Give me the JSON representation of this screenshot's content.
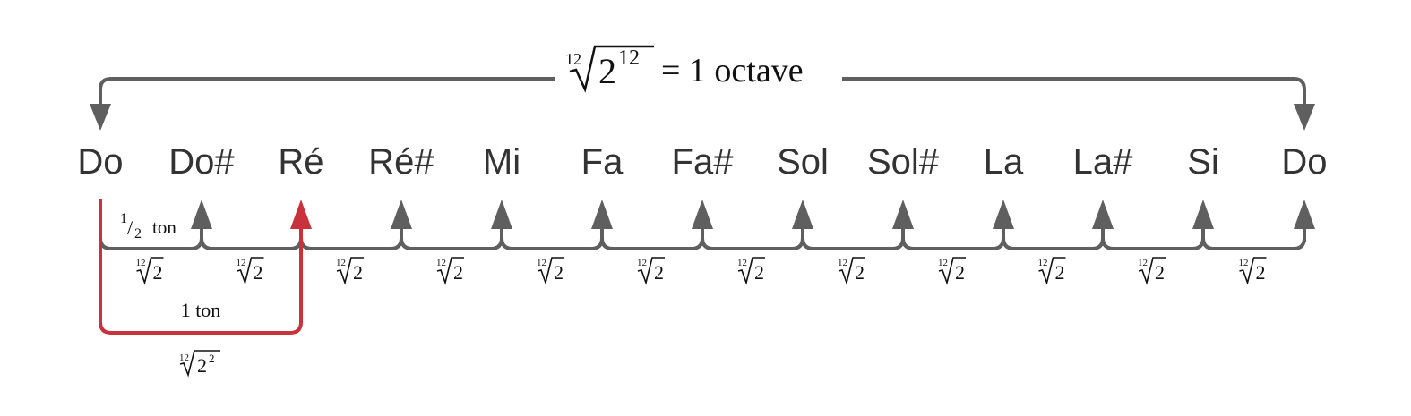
{
  "title": {
    "root_index": "12",
    "radicand_base": "2",
    "radicand_exponent": "12",
    "equals_text": "= 1 octave"
  },
  "notes": [
    "Do",
    "Do#",
    "Ré",
    "Ré#",
    "Mi",
    "Fa",
    "Fa#",
    "Sol",
    "Sol#",
    "La",
    "La#",
    "Si",
    "Do"
  ],
  "semitone": {
    "label_numerator": "1",
    "label_slash": "/",
    "label_denominator": "2",
    "label_unit": "ton",
    "ratio_index": "12",
    "ratio_radicand": "2"
  },
  "whole_tone": {
    "label": "1 ton",
    "ratio_index": "12",
    "ratio_base": "2",
    "ratio_exponent": "2"
  },
  "colors": {
    "gray": "#5f5f5f",
    "red": "#c8323c",
    "text": "#333333"
  }
}
